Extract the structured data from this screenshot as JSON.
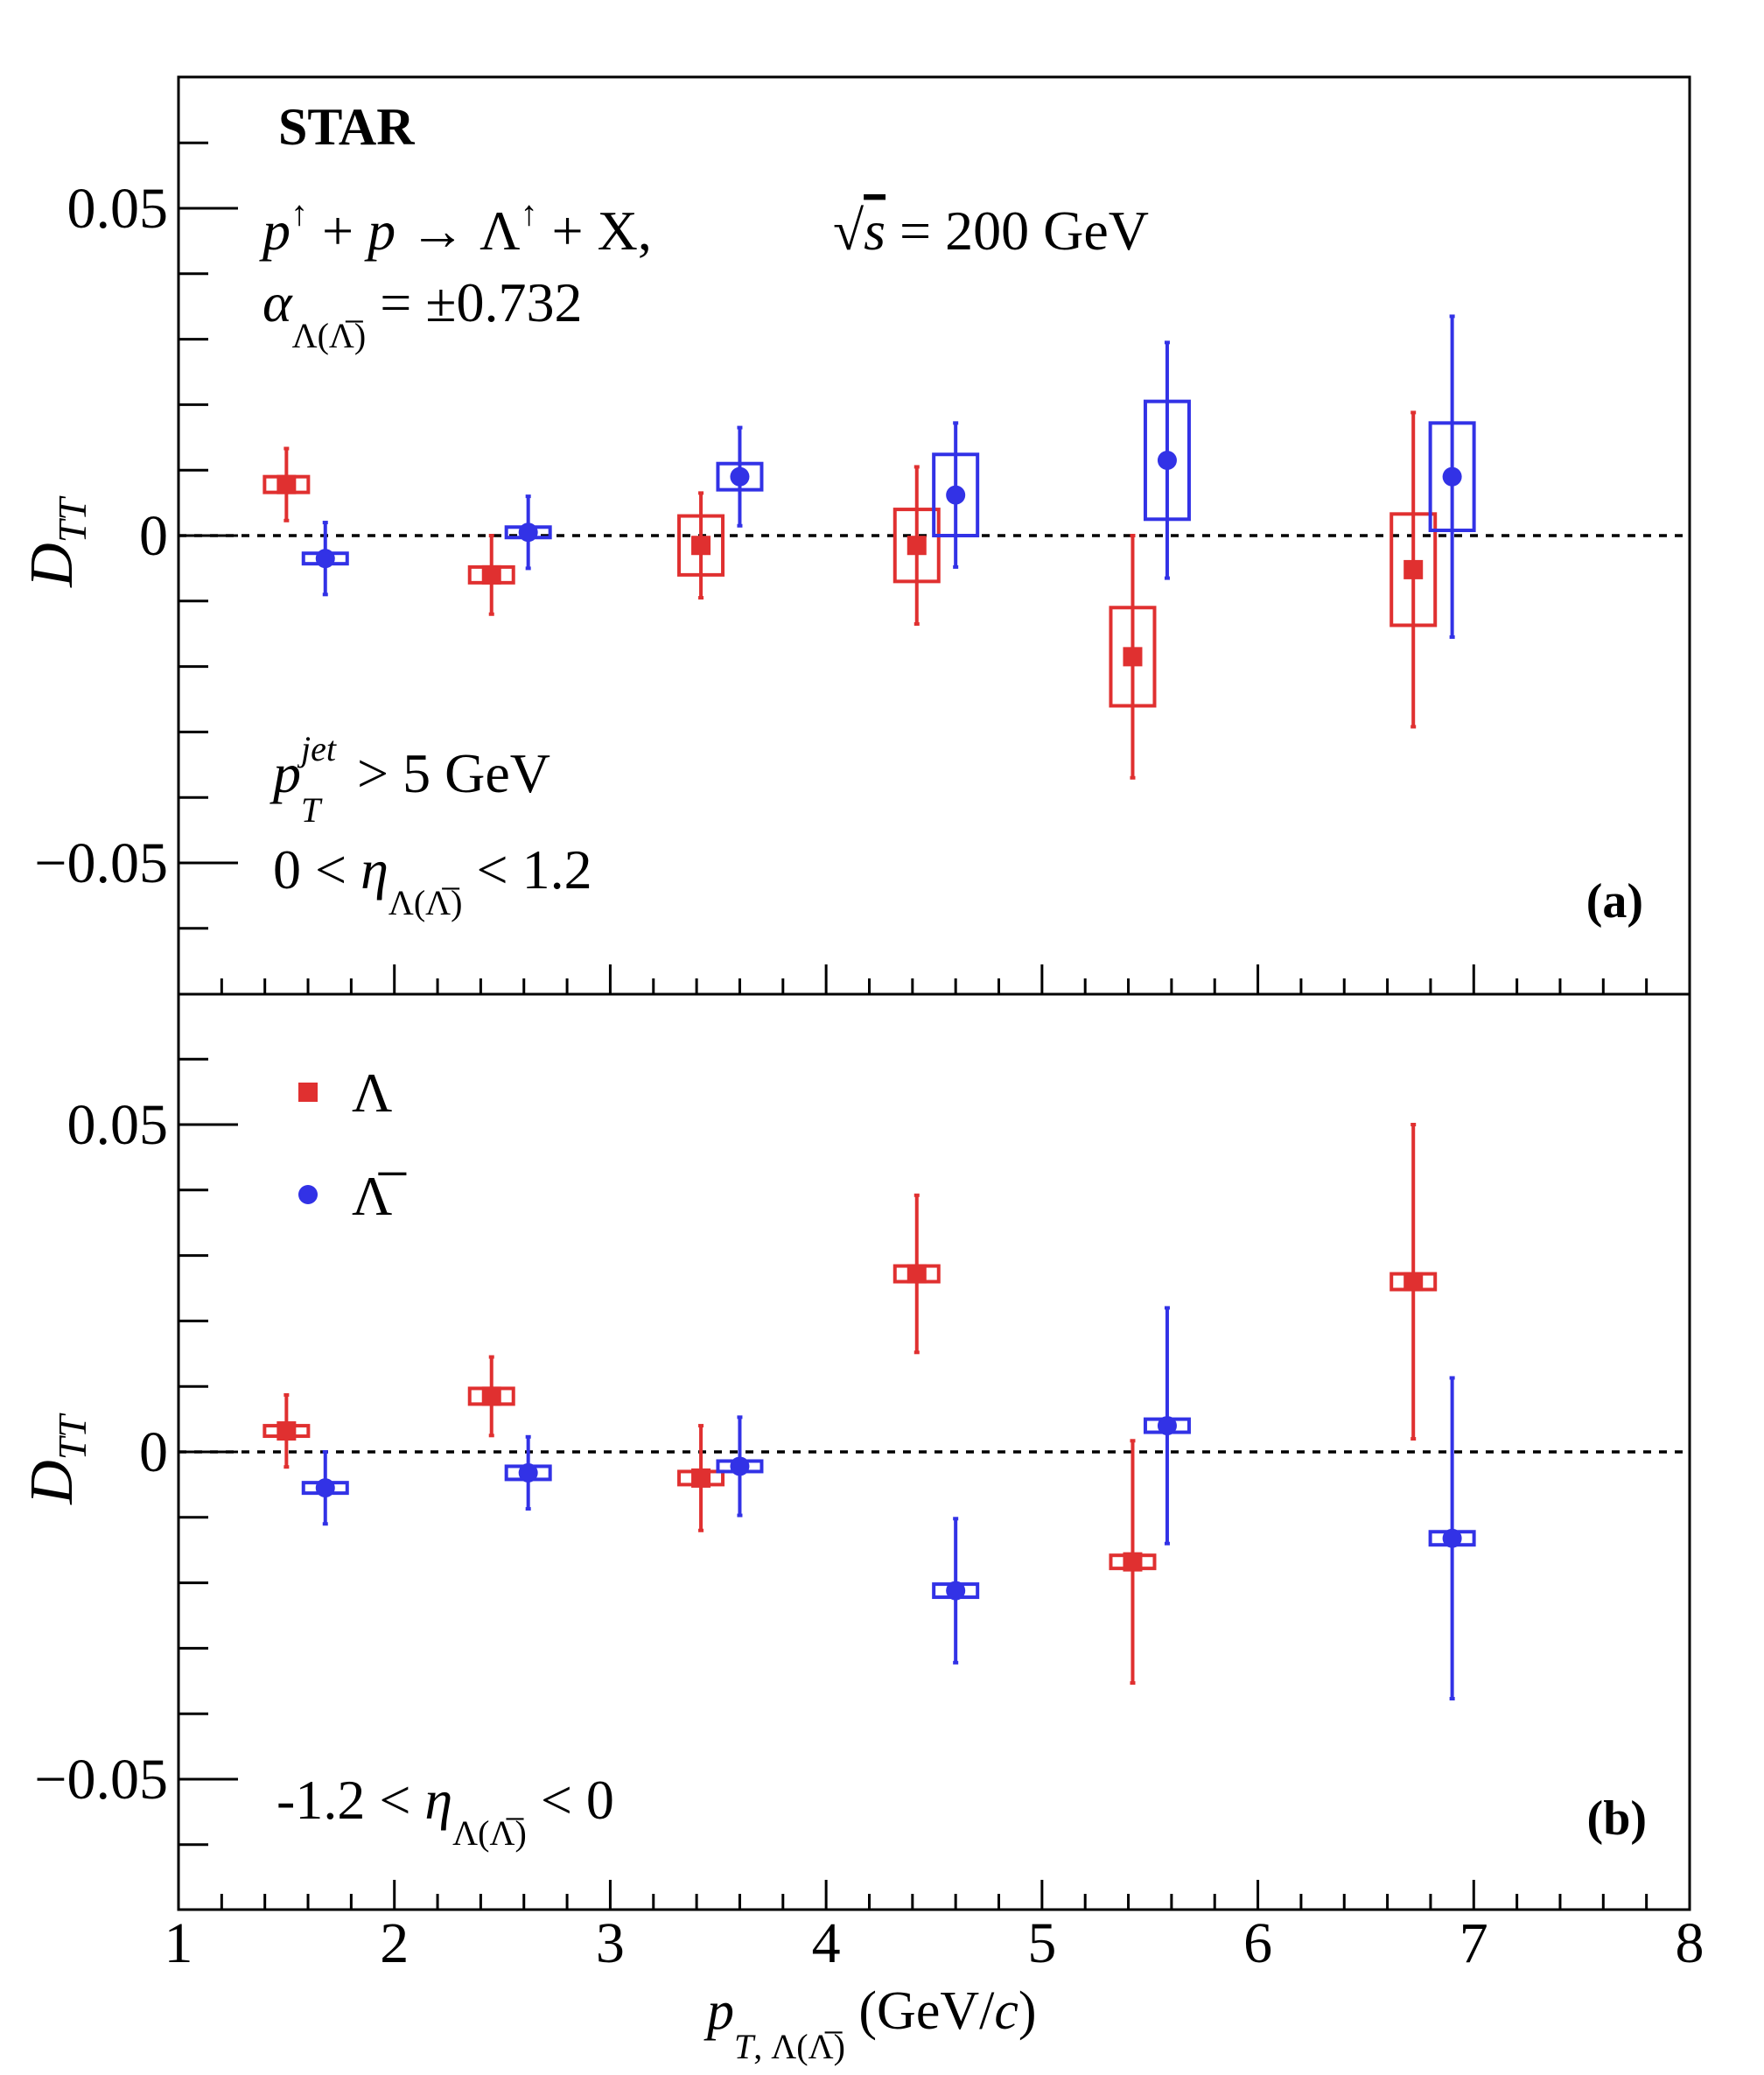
{
  "chart_data": [
    {
      "type": "scatter",
      "panel_label": "(a)",
      "ylabel": "D_TT",
      "ylim": [
        -0.07,
        0.07
      ],
      "xlim": [
        1,
        8
      ],
      "yticks": [
        -0.05,
        0,
        0.05
      ],
      "ytick_labels": [
        "−0.05",
        "0",
        "0.05"
      ],
      "annotations": {
        "experiment": "STAR",
        "reaction": "p↑ + p → Λ↑ + X,",
        "energy": "√s = 200 GeV",
        "alpha": "α_Λ(Λ̅) = ±0.732",
        "jet_cut": "p_T^jet > 5 GeV",
        "eta_range": "0 < η_Λ(Λ̅) < 1.2"
      },
      "series": [
        {
          "name": "Λ",
          "color": "#e03030",
          "marker": "square",
          "points": [
            {
              "x": 1.5,
              "y": 0.0078,
              "stat": 0.0055,
              "sys": 0.0012
            },
            {
              "x": 2.45,
              "y": -0.006,
              "stat": 0.006,
              "sys": 0.0012
            },
            {
              "x": 3.42,
              "y": -0.0015,
              "stat": 0.008,
              "sys": 0.0045
            },
            {
              "x": 4.42,
              "y": -0.0015,
              "stat": 0.012,
              "sys": 0.0055
            },
            {
              "x": 5.42,
              "y": -0.0185,
              "stat": 0.0185,
              "sys": 0.0075
            },
            {
              "x": 6.72,
              "y": -0.0052,
              "stat": 0.024,
              "sys": 0.0085
            }
          ]
        },
        {
          "name": "Λ̅",
          "color": "#3232e6",
          "marker": "circle",
          "points": [
            {
              "x": 1.68,
              "y": -0.0035,
              "stat": 0.0055,
              "sys": 0.0008
            },
            {
              "x": 2.62,
              "y": 0.0005,
              "stat": 0.0055,
              "sys": 0.0008
            },
            {
              "x": 3.6,
              "y": 0.009,
              "stat": 0.0075,
              "sys": 0.002
            },
            {
              "x": 4.6,
              "y": 0.0062,
              "stat": 0.011,
              "sys": 0.0062
            },
            {
              "x": 5.58,
              "y": 0.0115,
              "stat": 0.018,
              "sys": 0.009
            },
            {
              "x": 6.9,
              "y": 0.009,
              "stat": 0.0245,
              "sys": 0.0082
            }
          ]
        }
      ]
    },
    {
      "type": "scatter",
      "panel_label": "(b)",
      "ylabel": "D_TT",
      "xlabel": "p_T,Λ(Λ̅) (GeV/c)",
      "ylim": [
        -0.07,
        0.07
      ],
      "xlim": [
        1,
        8
      ],
      "xticks": [
        1,
        2,
        3,
        4,
        5,
        6,
        7,
        8
      ],
      "yticks": [
        -0.05,
        0,
        0.05
      ],
      "ytick_labels": [
        "−0.05",
        "0",
        "0.05"
      ],
      "annotations": {
        "eta_range": "-1.2 < η_Λ(Λ̅) < 0"
      },
      "legend": {
        "placement": "top-left",
        "entries": [
          "Λ",
          "Λ̅"
        ]
      },
      "series": [
        {
          "name": "Λ",
          "color": "#e03030",
          "marker": "square",
          "points": [
            {
              "x": 1.5,
              "y": 0.0032,
              "stat": 0.0055,
              "sys": 0.0008
            },
            {
              "x": 2.45,
              "y": 0.0085,
              "stat": 0.006,
              "sys": 0.0012
            },
            {
              "x": 3.42,
              "y": -0.004,
              "stat": 0.008,
              "sys": 0.001
            },
            {
              "x": 4.42,
              "y": 0.0272,
              "stat": 0.012,
              "sys": 0.0012
            },
            {
              "x": 5.42,
              "y": -0.0168,
              "stat": 0.0185,
              "sys": 0.001
            },
            {
              "x": 6.72,
              "y": 0.026,
              "stat": 0.024,
              "sys": 0.0012
            }
          ]
        },
        {
          "name": "Λ̅",
          "color": "#3232e6",
          "marker": "circle",
          "points": [
            {
              "x": 1.68,
              "y": -0.0055,
              "stat": 0.0055,
              "sys": 0.0008
            },
            {
              "x": 2.62,
              "y": -0.0032,
              "stat": 0.0055,
              "sys": 0.001
            },
            {
              "x": 3.6,
              "y": -0.0022,
              "stat": 0.0075,
              "sys": 0.0008
            },
            {
              "x": 4.6,
              "y": -0.0212,
              "stat": 0.011,
              "sys": 0.001
            },
            {
              "x": 5.58,
              "y": 0.004,
              "stat": 0.018,
              "sys": 0.001
            },
            {
              "x": 6.9,
              "y": -0.0132,
              "stat": 0.0245,
              "sys": 0.001
            }
          ]
        }
      ]
    }
  ]
}
